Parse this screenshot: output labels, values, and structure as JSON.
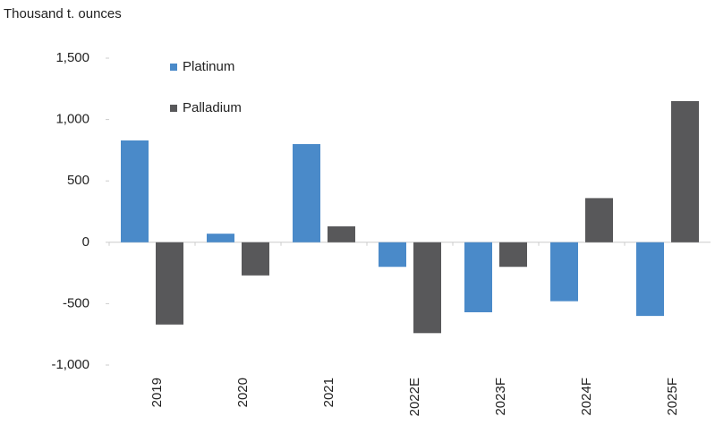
{
  "chart_data": {
    "type": "bar",
    "y_axis_label": "Thousand t. ounces",
    "categories": [
      "2019",
      "2020",
      "2021",
      "2022E",
      "2023F",
      "2024F",
      "2025F"
    ],
    "series": [
      {
        "name": "Platinum",
        "color": "#4a8ac9",
        "values": [
          830,
          70,
          800,
          -200,
          -570,
          -480,
          -600
        ]
      },
      {
        "name": "Palladium",
        "color": "#58585a",
        "values": [
          -670,
          -270,
          130,
          -740,
          -200,
          360,
          1150
        ]
      }
    ],
    "ylim": [
      -1000,
      1500
    ],
    "yticks": [
      {
        "value": 1500,
        "label": "1,500"
      },
      {
        "value": 1000,
        "label": "1,000"
      },
      500,
      0,
      -500,
      {
        "value": -1000,
        "label": "-1,000"
      }
    ],
    "legend": "top-left"
  }
}
